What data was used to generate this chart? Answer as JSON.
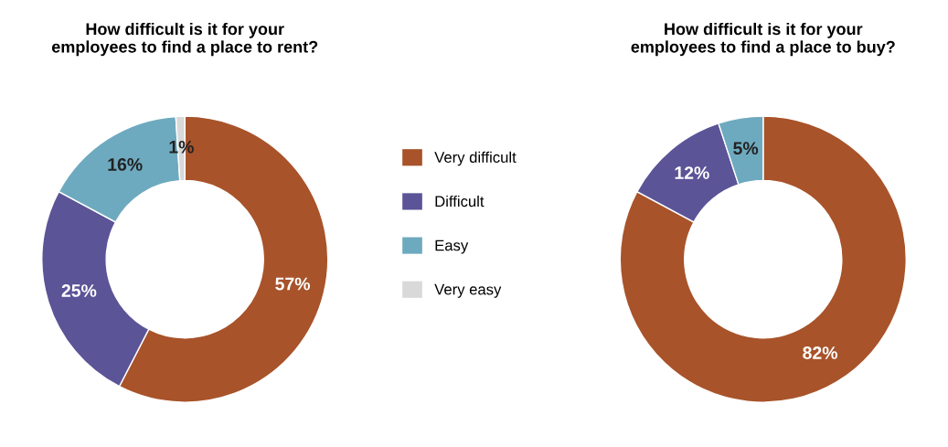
{
  "chart_data": [
    {
      "type": "donut",
      "title": "How difficult is it for your\nemployees to find a place to rent?",
      "categories": [
        "Very difficult",
        "Difficult",
        "Easy",
        "Very easy"
      ],
      "values": [
        57,
        25,
        16,
        1
      ],
      "value_labels": [
        "57%",
        "25%",
        "16%",
        "1%"
      ],
      "colors": [
        "#a8532a",
        "#5b5497",
        "#6eaabf",
        "#d9d9d9"
      ],
      "legend": "right"
    },
    {
      "type": "donut",
      "title": "How difficult is it for your\nemployees to find a place to buy?",
      "categories": [
        null,
        null,
        null
      ],
      "values": [
        82,
        12,
        5
      ],
      "value_labels": [
        "82%",
        "12%",
        "5%"
      ],
      "colors": [
        "#a8532a",
        "#5b5497",
        "#6eaabf"
      ]
    }
  ]
}
